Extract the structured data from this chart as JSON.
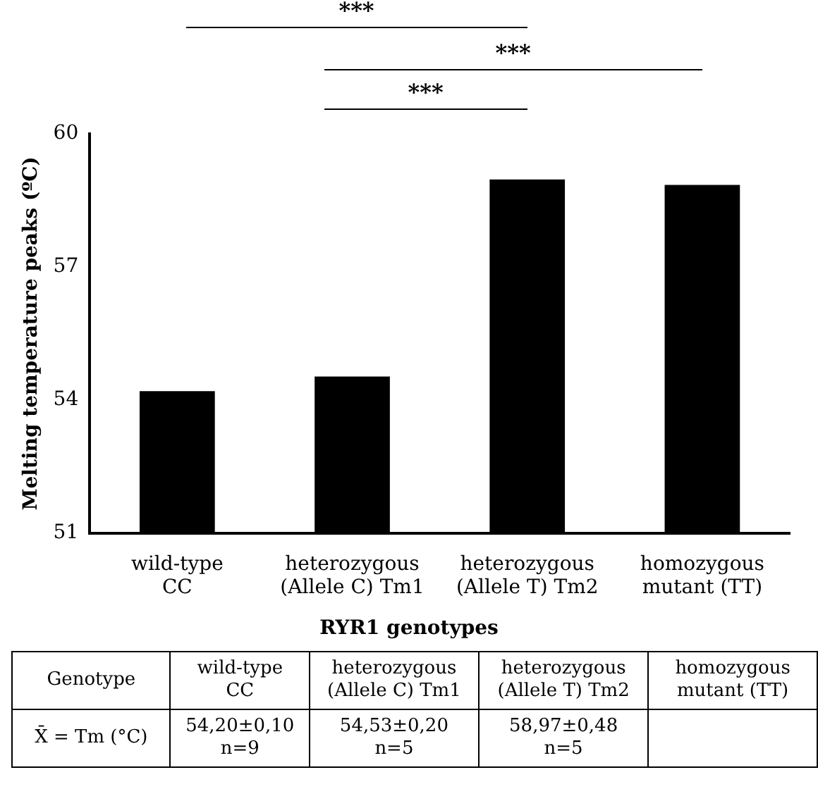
{
  "chart_data": {
    "type": "bar",
    "categories": [
      "wild-type CC",
      "heterozygous (Allele C) Tm1",
      "heterozygous (Allele T) Tm2",
      "homozygous mutant (TT)"
    ],
    "values": [
      54.2,
      54.53,
      58.97,
      58.85
    ],
    "color": "#000000",
    "value_labels": [
      "54,20±0,10 n=9",
      "54,53±0,20 n=5",
      "58,97±0,48 n=5",
      null
    ],
    "ylim": [
      51,
      60
    ],
    "yticks": [
      51,
      54,
      57,
      60
    ],
    "ylabel": "Melting temperature peaks (ºC)",
    "xlabel": "RYR1 genotypes",
    "annotations": [
      "***",
      "***",
      "***",
      "Genotype",
      "X̄ = Tm (°C)"
    ],
    "grid": false,
    "legend": false
  }
}
